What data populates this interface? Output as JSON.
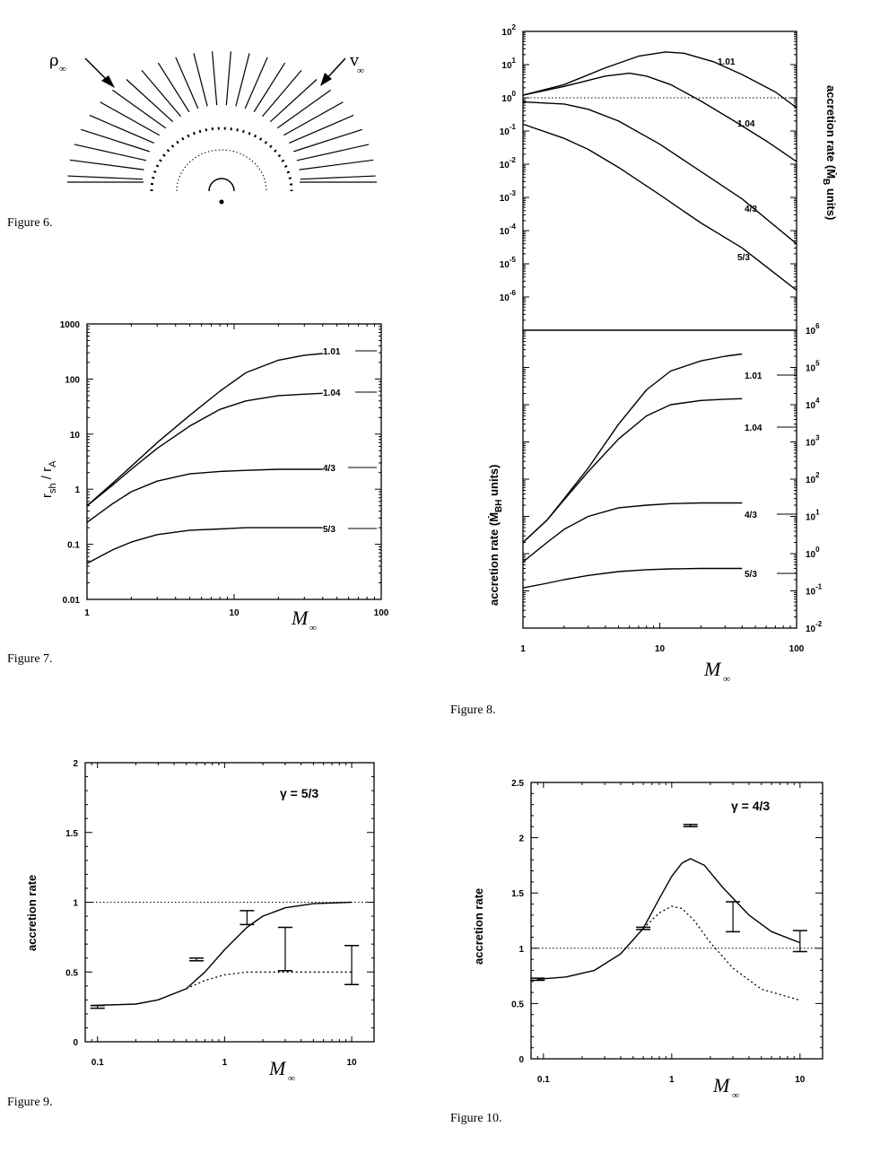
{
  "figures": {
    "fig6": {
      "caption": "Figure 6.",
      "rho_label": "ρ",
      "v_label": "v",
      "inf_sub": "∞"
    },
    "fig7": {
      "caption": "Figure 7.",
      "ylabel_main": "r",
      "ylabel_sh": "sh",
      "ylabel_mid": " / r",
      "ylabel_A": "A",
      "xlabel": "M",
      "xlabel_sub": "∞"
    },
    "fig8": {
      "caption": "Figure 8.",
      "top_ylabel": "accretion rate (Ṁ",
      "top_ylabel_sub": "B",
      "top_ylabel_end": " units)",
      "bottom_ylabel": "accretion rate (Ṁ",
      "bottom_ylabel_sub": "BH",
      "bottom_ylabel_end": " units)",
      "xlabel": "M",
      "xlabel_sub": "∞"
    },
    "fig9": {
      "caption": "Figure 9.",
      "ylabel": "accretion rate",
      "gamma_label": "γ  =  5/3",
      "xlabel": "M",
      "xlabel_sub": "∞"
    },
    "fig10": {
      "caption": "Figure 10.",
      "ylabel": "accretion rate",
      "gamma_label": "γ  =  4/3",
      "xlabel": "M",
      "xlabel_sub": "∞"
    }
  },
  "chart_data": [
    {
      "id": "fig7",
      "type": "line",
      "xscale": "log",
      "yscale": "log",
      "xlim": [
        1,
        100
      ],
      "ylim": [
        0.01,
        1000
      ],
      "xticks": [
        "1",
        "10",
        "100"
      ],
      "yticks": [
        "0.01",
        "0.1",
        "1",
        "10",
        "100",
        "1000"
      ],
      "xlabel": "M∞",
      "ylabel": "r_sh / r_A",
      "series": [
        {
          "name": "1.01",
          "x": [
            1,
            1.5,
            2,
            3,
            5,
            8,
            12,
            20,
            30,
            40
          ],
          "y": [
            0.5,
            1.3,
            2.6,
            7,
            22,
            60,
            130,
            220,
            270,
            290
          ]
        },
        {
          "name": "1.04",
          "x": [
            1,
            1.5,
            2,
            3,
            5,
            8,
            12,
            20,
            30,
            40
          ],
          "y": [
            0.5,
            1.2,
            2.3,
            5.5,
            14,
            28,
            40,
            50,
            53,
            55
          ]
        },
        {
          "name": "4/3",
          "x": [
            1,
            1.5,
            2,
            3,
            5,
            8,
            12,
            20,
            40
          ],
          "y": [
            0.25,
            0.55,
            0.9,
            1.4,
            1.9,
            2.1,
            2.2,
            2.3,
            2.3
          ]
        },
        {
          "name": "5/3",
          "x": [
            1,
            1.5,
            2,
            3,
            5,
            8,
            12,
            20,
            40
          ],
          "y": [
            0.045,
            0.08,
            0.11,
            0.15,
            0.18,
            0.19,
            0.2,
            0.2,
            0.2
          ]
        }
      ]
    },
    {
      "id": "fig8_top",
      "type": "line",
      "xscale": "log",
      "yscale": "log",
      "xlim": [
        1,
        100
      ],
      "ylim": [
        1e-07,
        100
      ],
      "yticks": [
        "10^2",
        "10^1",
        "10^0",
        "10^-1",
        "10^-2",
        "10^-3",
        "10^-4",
        "10^-5",
        "10^-6"
      ],
      "ylabel": "accretion rate (Ṁ_B units)",
      "reference_line": 1,
      "series": [
        {
          "name": "1.01",
          "x": [
            1,
            2,
            4,
            7,
            11,
            15,
            25,
            40,
            70,
            100
          ],
          "y": [
            1.2,
            2.5,
            8,
            18,
            24,
            22,
            12,
            5,
            1.5,
            0.5
          ]
        },
        {
          "name": "1.04",
          "x": [
            1,
            2,
            4,
            6,
            8,
            12,
            20,
            35,
            60,
            100
          ],
          "y": [
            1.2,
            2.2,
            4.5,
            5.5,
            4.5,
            2.5,
            0.8,
            0.2,
            0.05,
            0.012
          ]
        },
        {
          "name": "4/3",
          "x": [
            1,
            2,
            3,
            5,
            10,
            20,
            40,
            100
          ],
          "y": [
            0.75,
            0.65,
            0.45,
            0.2,
            0.04,
            0.006,
            0.0009,
            4e-05
          ]
        },
        {
          "name": "5/3",
          "x": [
            1,
            2,
            3,
            5,
            10,
            20,
            40,
            100
          ],
          "y": [
            0.16,
            0.06,
            0.028,
            0.008,
            0.0012,
            0.00017,
            3e-05,
            1.6e-06
          ]
        }
      ]
    },
    {
      "id": "fig8_bottom",
      "type": "line",
      "xscale": "log",
      "yscale": "log",
      "xlim": [
        1,
        100
      ],
      "ylim": [
        0.01,
        1000000
      ],
      "xticks": [
        "1",
        "10",
        "100"
      ],
      "yticks": [
        "10^6",
        "10^5",
        "10^4",
        "10^3",
        "10^2",
        "10^1",
        "10^0",
        "10^-1",
        "10^-2"
      ],
      "ylabel": "accretion rate (Ṁ_BH units)",
      "xlabel": "M∞",
      "series": [
        {
          "name": "1.01",
          "x": [
            1,
            1.5,
            2,
            3,
            5,
            8,
            12,
            20,
            30,
            40
          ],
          "y": [
            2,
            8,
            30,
            200,
            3000,
            25000,
            80000,
            150000,
            200000,
            230000
          ]
        },
        {
          "name": "1.04",
          "x": [
            1,
            1.5,
            2,
            3,
            5,
            8,
            12,
            20,
            30,
            40
          ],
          "y": [
            2,
            8,
            28,
            160,
            1200,
            5000,
            10000,
            13000,
            14000,
            14500
          ]
        },
        {
          "name": "4/3",
          "x": [
            1,
            1.5,
            2,
            3,
            5,
            8,
            12,
            20,
            40
          ],
          "y": [
            0.6,
            2,
            4.5,
            10,
            17,
            20,
            22,
            23,
            23
          ]
        },
        {
          "name": "5/3",
          "x": [
            1,
            1.5,
            2,
            3,
            5,
            8,
            12,
            20,
            40
          ],
          "y": [
            0.12,
            0.16,
            0.2,
            0.26,
            0.33,
            0.37,
            0.39,
            0.4,
            0.4
          ]
        }
      ]
    },
    {
      "id": "fig9",
      "type": "line",
      "xscale": "log",
      "yscale": "linear",
      "xlim": [
        0.08,
        15
      ],
      "ylim": [
        0,
        2
      ],
      "xticks": [
        "0.1",
        "1",
        "10"
      ],
      "yticks": [
        "0",
        "0.5",
        "1",
        "1.5",
        "2"
      ],
      "xlabel": "M∞",
      "ylabel": "accretion rate",
      "reference_line": 1,
      "series": [
        {
          "name": "solid",
          "x": [
            0.09,
            0.2,
            0.3,
            0.5,
            0.7,
            1,
            1.5,
            2,
            3,
            5,
            10
          ],
          "y": [
            0.26,
            0.27,
            0.3,
            0.38,
            0.5,
            0.66,
            0.82,
            0.9,
            0.96,
            0.99,
            1.0
          ]
        },
        {
          "name": "dotted",
          "x": [
            0.5,
            0.7,
            1,
            1.5,
            2,
            3,
            5,
            10
          ],
          "y": [
            0.38,
            0.44,
            0.48,
            0.5,
            0.5,
            0.5,
            0.5,
            0.5
          ]
        }
      ],
      "error_bars": [
        {
          "x": 0.1,
          "low": 0.24,
          "high": 0.26
        },
        {
          "x": 0.6,
          "low": 0.58,
          "high": 0.6
        },
        {
          "x": 1.5,
          "low": 0.84,
          "high": 0.94
        },
        {
          "x": 3,
          "low": 0.51,
          "high": 0.82
        },
        {
          "x": 10,
          "low": 0.41,
          "high": 0.69
        }
      ]
    },
    {
      "id": "fig10",
      "type": "line",
      "xscale": "log",
      "yscale": "linear",
      "xlim": [
        0.08,
        15
      ],
      "ylim": [
        0,
        2.5
      ],
      "xticks": [
        "0.1",
        "1",
        "10"
      ],
      "yticks": [
        "0",
        "0.5",
        "1",
        "1.5",
        "2",
        "2.5"
      ],
      "xlabel": "M∞",
      "ylabel": "accretion rate",
      "reference_line": 1,
      "series": [
        {
          "name": "solid",
          "x": [
            0.09,
            0.15,
            0.25,
            0.4,
            0.6,
            0.8,
            1,
            1.2,
            1.4,
            1.8,
            2.5,
            4,
            6,
            10
          ],
          "y": [
            0.72,
            0.74,
            0.8,
            0.95,
            1.18,
            1.45,
            1.65,
            1.77,
            1.81,
            1.75,
            1.55,
            1.3,
            1.15,
            1.05
          ]
        },
        {
          "name": "dotted",
          "x": [
            0.6,
            0.8,
            1,
            1.2,
            1.5,
            2,
            3,
            5,
            10
          ],
          "y": [
            1.18,
            1.32,
            1.38,
            1.36,
            1.25,
            1.05,
            0.82,
            0.63,
            0.53
          ]
        }
      ],
      "error_bars": [
        {
          "x": 0.09,
          "low": 0.71,
          "high": 0.73
        },
        {
          "x": 0.6,
          "low": 1.17,
          "high": 1.19
        },
        {
          "x": 1.4,
          "low": 2.1,
          "high": 2.12
        },
        {
          "x": 3,
          "low": 1.15,
          "high": 1.42
        },
        {
          "x": 10,
          "low": 0.97,
          "high": 1.16
        }
      ]
    }
  ]
}
